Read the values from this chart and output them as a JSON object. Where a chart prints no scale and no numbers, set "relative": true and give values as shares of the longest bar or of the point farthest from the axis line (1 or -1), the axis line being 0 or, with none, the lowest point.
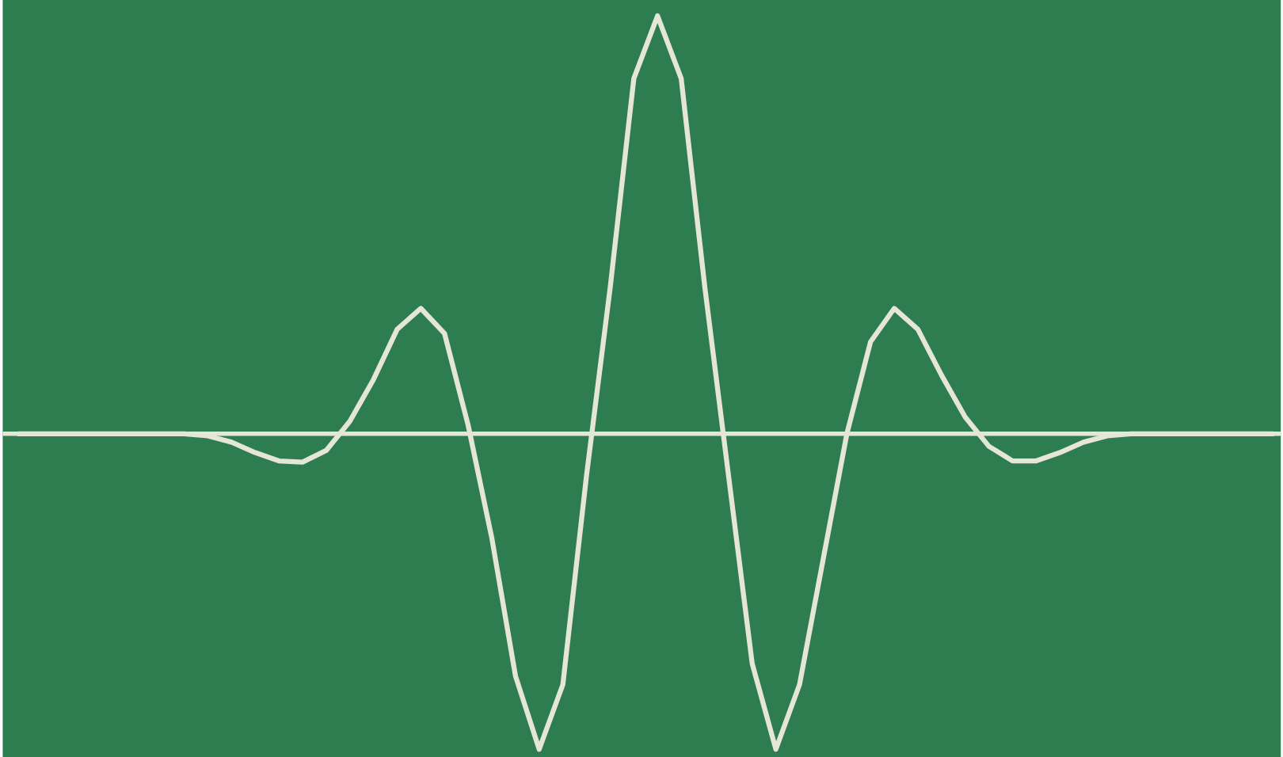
{
  "chart_data": {
    "type": "line",
    "relative": true,
    "categories": [
      null,
      null,
      null,
      null,
      null,
      null,
      null,
      null,
      null,
      null,
      null,
      null,
      null,
      null,
      null,
      null,
      null,
      null,
      null,
      null,
      null,
      null,
      null,
      null,
      null,
      null,
      null,
      null,
      null,
      null,
      null,
      null,
      null,
      null,
      null,
      null,
      null,
      null,
      null,
      null,
      null,
      null,
      null,
      null,
      null,
      null,
      null,
      null,
      null,
      null,
      null,
      null,
      null,
      null
    ],
    "series": [
      {
        "color": "#e6e6d6",
        "values": [
          0,
          0,
          0,
          0,
          0,
          0,
          0,
          0,
          -0.005,
          -0.02,
          -0.045,
          -0.065,
          -0.068,
          -0.04,
          0.03,
          0.13,
          0.25,
          0.3,
          0.24,
          0.02,
          -0.25,
          -0.58,
          -0.755,
          -0.6,
          -0.1,
          0.35,
          0.85,
          1.0,
          0.85,
          0.35,
          -0.1,
          -0.55,
          -0.755,
          -0.6,
          -0.3,
          0.0,
          0.22,
          0.3,
          0.25,
          0.14,
          0.04,
          -0.03,
          -0.065,
          -0.065,
          -0.045,
          -0.02,
          -0.005,
          0,
          0,
          0,
          0,
          0,
          0,
          0
        ]
      }
    ]
  }
}
